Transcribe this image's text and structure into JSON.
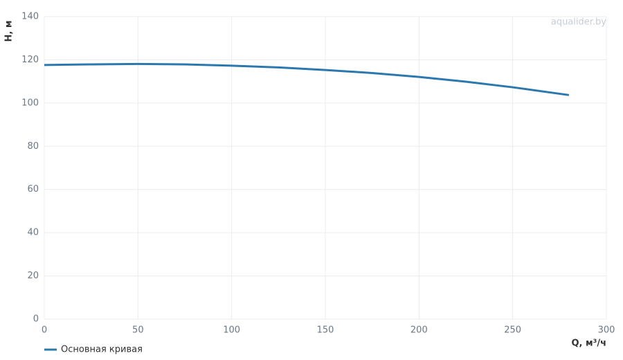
{
  "chart_data": {
    "type": "line",
    "watermark": "aqualider.by",
    "y_label": "H, м",
    "x_label": "Q, м³/ч",
    "x": [
      0,
      25,
      50,
      75,
      100,
      125,
      150,
      175,
      200,
      225,
      250,
      280
    ],
    "series": [
      {
        "name": "Основная кривая",
        "color": "#2b78ae",
        "values": [
          117.6,
          117.9,
          118.1,
          117.9,
          117.3,
          116.5,
          115.3,
          113.9,
          112.1,
          109.9,
          107.3,
          103.7
        ]
      }
    ],
    "xlim": [
      0,
      300
    ],
    "xticks": [
      0,
      50,
      100,
      150,
      200,
      250,
      300
    ],
    "ylim": [
      0,
      140
    ],
    "yticks": [
      0,
      20,
      40,
      60,
      80,
      100,
      120,
      140
    ],
    "grid": true
  }
}
